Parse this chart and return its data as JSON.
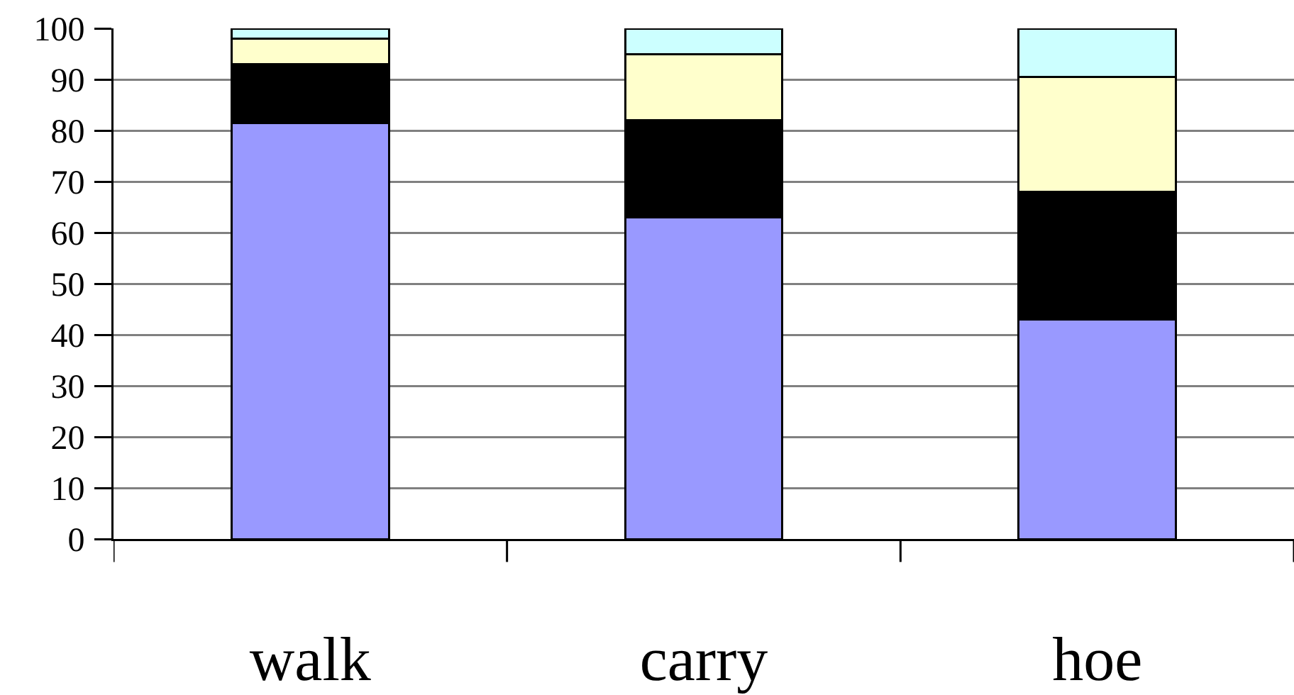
{
  "chart_data": {
    "type": "bar",
    "stacked": true,
    "categories": [
      "walk",
      "carry",
      "hoe"
    ],
    "series": [
      {
        "color": "#9999ff",
        "values": [
          81.5,
          63,
          43
        ]
      },
      {
        "color": "#000000",
        "values": [
          11.5,
          19,
          25
        ]
      },
      {
        "color": "#ffffcc",
        "values": [
          5,
          13,
          22.5
        ]
      },
      {
        "color": "#ccffff",
        "values": [
          2,
          5,
          9.5
        ]
      }
    ],
    "ylim": [
      0,
      100
    ],
    "yticks": [
      0,
      10,
      20,
      30,
      40,
      50,
      60,
      70,
      80,
      90,
      100
    ],
    "grid": "y"
  }
}
